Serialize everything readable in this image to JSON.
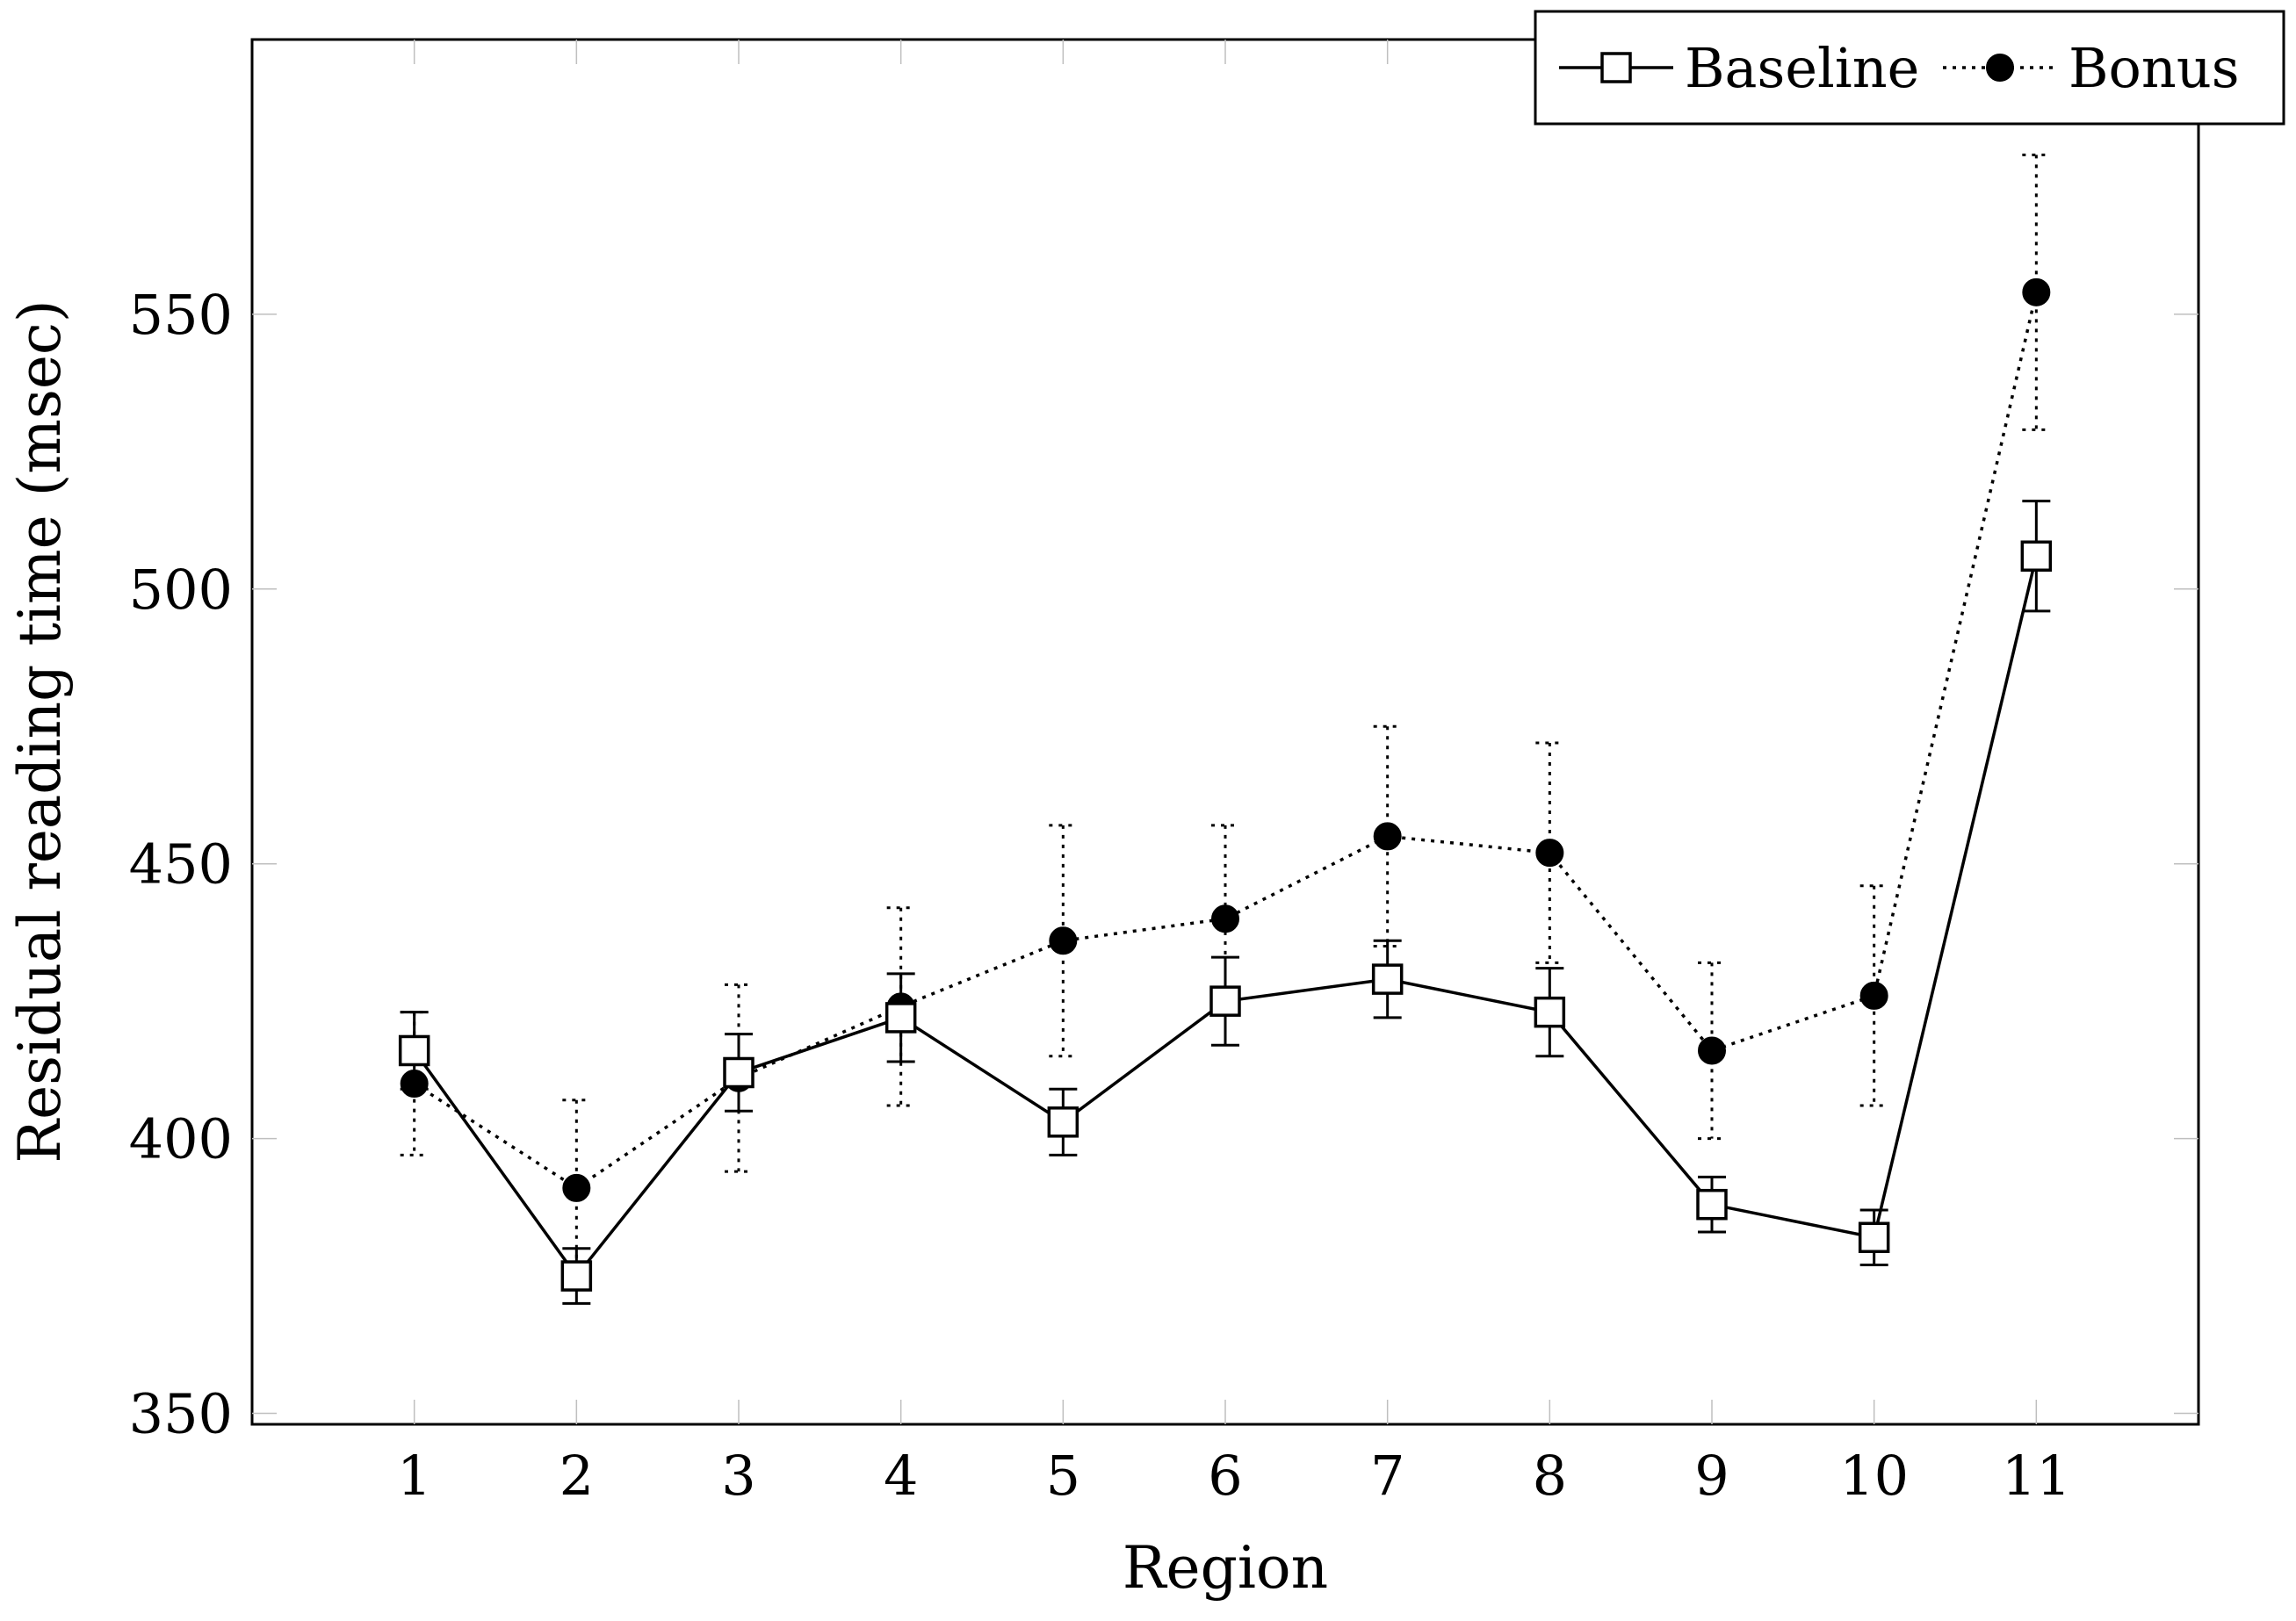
{
  "chart_data": {
    "type": "line",
    "title": "",
    "xlabel": "Region",
    "ylabel": "Residual reading time (msec)",
    "categories": [
      "1",
      "2",
      "3",
      "4",
      "5",
      "6",
      "7",
      "8",
      "9",
      "10",
      "11"
    ],
    "x": [
      1,
      2,
      3,
      4,
      5,
      6,
      7,
      8,
      9,
      10,
      11
    ],
    "xlim": [
      0,
      12
    ],
    "ylim": [
      348,
      600
    ],
    "yticks": [
      350,
      400,
      450,
      500,
      550
    ],
    "grid": false,
    "legend_position": "top-right",
    "series": [
      {
        "name": "Baseline",
        "marker": "open-square",
        "line_style": "solid",
        "values": [
          416,
          375,
          412,
          422,
          403,
          425,
          429,
          423,
          388,
          382,
          506
        ],
        "error": [
          7,
          5,
          7,
          8,
          6,
          8,
          7,
          8,
          5,
          5,
          10
        ]
      },
      {
        "name": "Bonus",
        "marker": "filled-circle",
        "line_style": "dotted",
        "values": [
          410,
          391,
          411,
          424,
          436,
          440,
          455,
          452,
          416,
          426,
          554
        ],
        "error": [
          13,
          16,
          17,
          18,
          21,
          17,
          20,
          20,
          16,
          20,
          25
        ]
      }
    ]
  }
}
